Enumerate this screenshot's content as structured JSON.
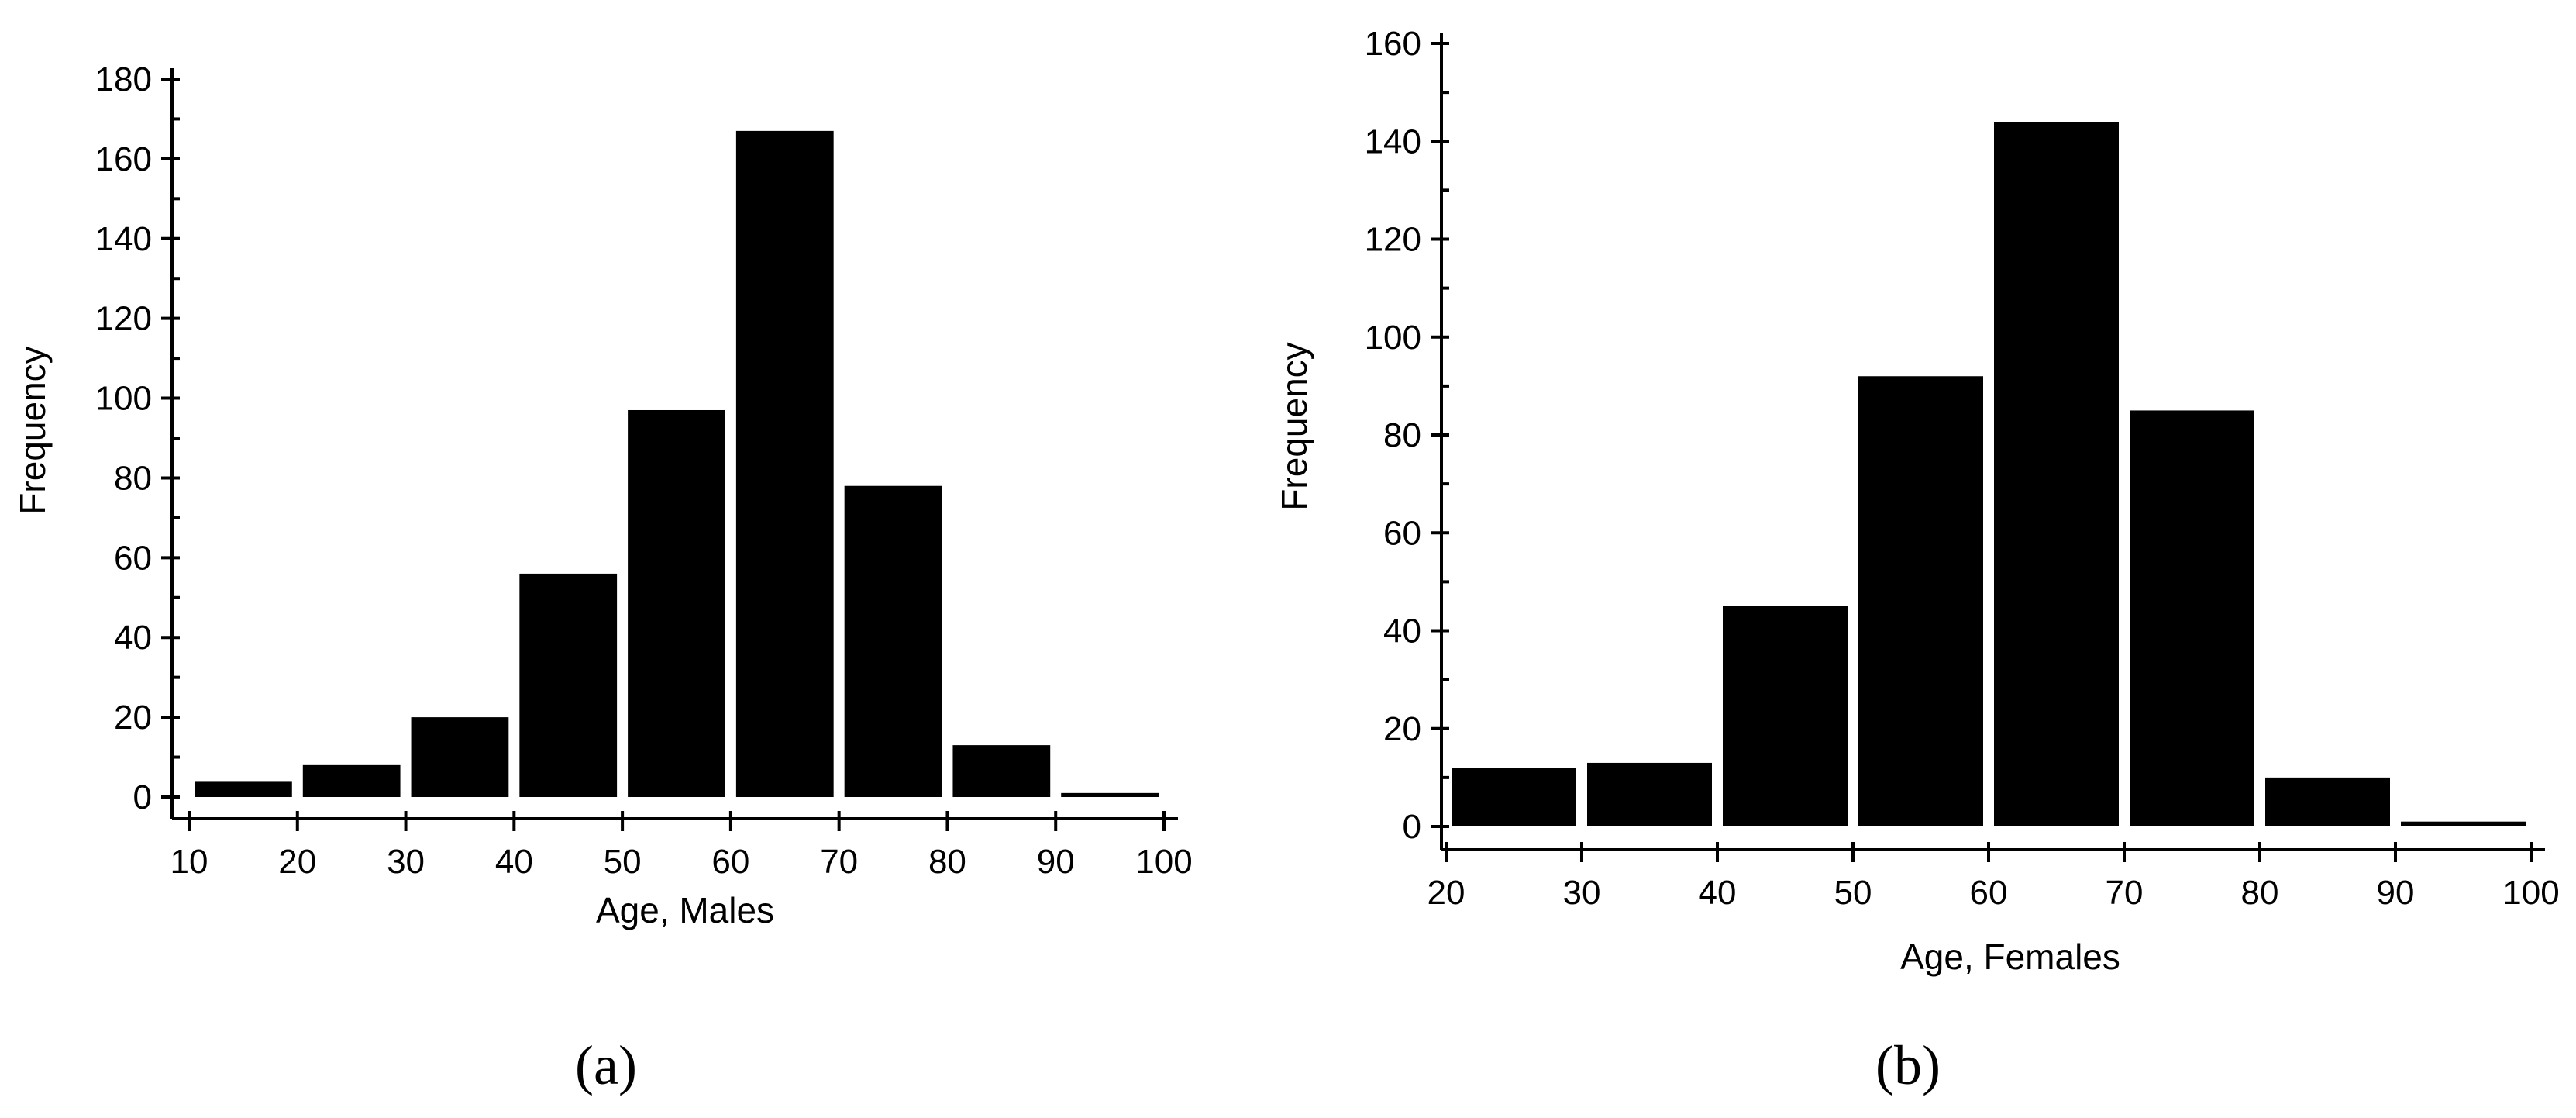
{
  "chart_data": [
    {
      "type": "bar",
      "panel_label": "(a)",
      "xlabel": "Age, Males",
      "ylabel": "Frequency",
      "bin_edges": [
        10,
        20,
        30,
        40,
        50,
        60,
        70,
        80,
        90,
        100
      ],
      "x_ticks": [
        10,
        20,
        30,
        40,
        50,
        60,
        70,
        80,
        90,
        100
      ],
      "values": [
        4,
        8,
        20,
        56,
        97,
        167,
        78,
        13,
        1
      ],
      "xlim": [
        10,
        100
      ],
      "ylim": [
        0,
        180
      ],
      "y_ticks": [
        0,
        20,
        40,
        60,
        80,
        100,
        120,
        140,
        160,
        180
      ],
      "grid": false,
      "bar_color": "#000000"
    },
    {
      "type": "bar",
      "panel_label": "(b)",
      "xlabel": "Age, Females",
      "ylabel": "Frequency",
      "bin_edges": [
        20,
        30,
        40,
        50,
        60,
        70,
        80,
        90,
        100
      ],
      "x_ticks": [
        20,
        30,
        40,
        50,
        60,
        70,
        80,
        90,
        100
      ],
      "values": [
        12,
        13,
        45,
        92,
        144,
        85,
        10,
        1
      ],
      "xlim": [
        20,
        100
      ],
      "ylim": [
        0,
        160
      ],
      "y_ticks": [
        0,
        20,
        40,
        60,
        80,
        100,
        120,
        140,
        160
      ],
      "grid": false,
      "bar_color": "#000000"
    }
  ]
}
